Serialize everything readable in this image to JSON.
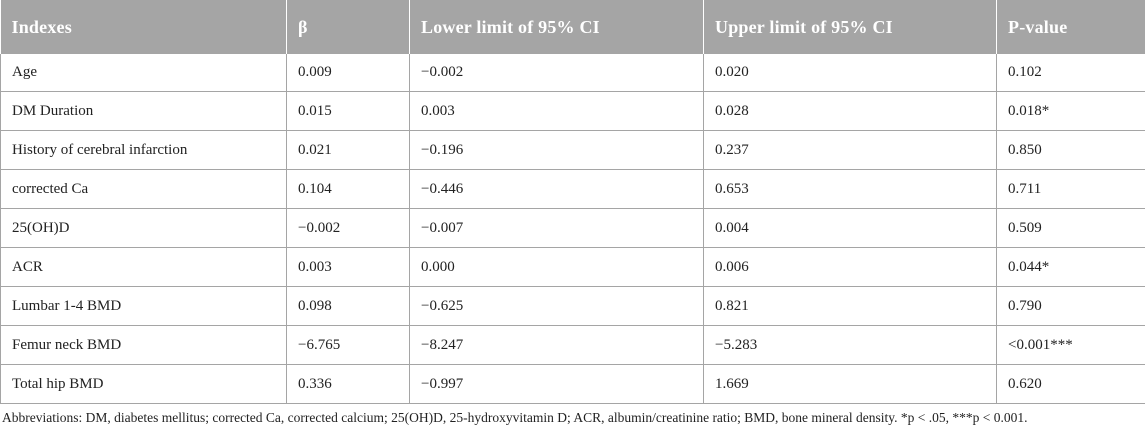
{
  "table": {
    "headers": [
      "Indexes",
      "β",
      "Lower limit of 95% CI",
      "Upper limit of 95% CI",
      "P-value"
    ],
    "rows": [
      [
        "Age",
        "0.009",
        "−0.002",
        "0.020",
        "0.102"
      ],
      [
        "DM Duration",
        "0.015",
        "0.003",
        "0.028",
        "0.018*"
      ],
      [
        "History of cerebral infarction",
        "0.021",
        "−0.196",
        "0.237",
        "0.850"
      ],
      [
        "corrected Ca",
        "0.104",
        "−0.446",
        "0.653",
        "0.711"
      ],
      [
        "25(OH)D",
        "−0.002",
        "−0.007",
        "0.004",
        "0.509"
      ],
      [
        "ACR",
        "0.003",
        "0.000",
        "0.006",
        "0.044*"
      ],
      [
        "Lumbar 1-4 BMD",
        "0.098",
        "−0.625",
        "0.821",
        "0.790"
      ],
      [
        "Femur neck BMD",
        "−6.765",
        "−8.247",
        "−5.283",
        "<0.001***"
      ],
      [
        "Total hip BMD",
        "0.336",
        "−0.997",
        "1.669",
        "0.620"
      ]
    ]
  },
  "footnote": "Abbreviations: DM, diabetes mellitus; corrected Ca, corrected calcium; 25(OH)D, 25-hydroxyvitamin D; ACR, albumin/creatinine ratio; BMD, bone mineral density. *p < .05, ***p < 0.001."
}
